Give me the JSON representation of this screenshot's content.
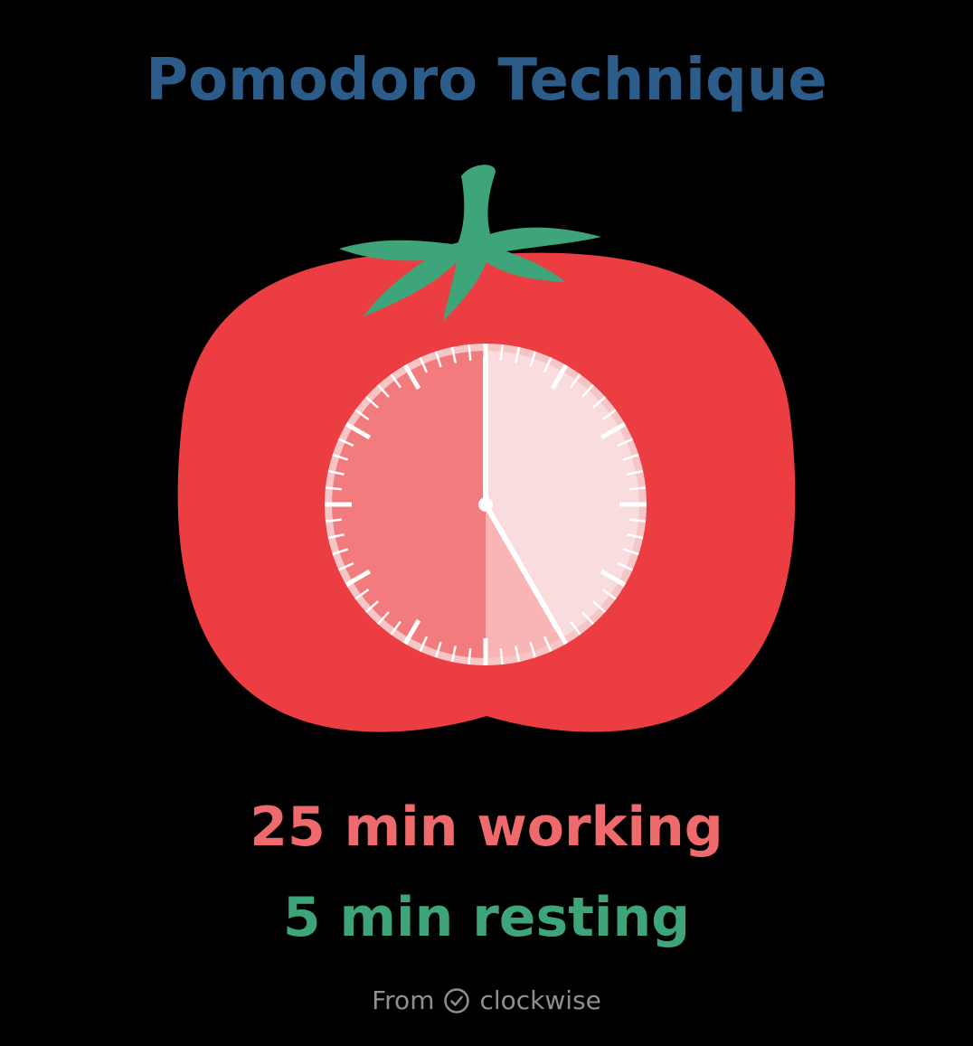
{
  "title": "Pomodoro Technique",
  "work_line": "25 min working",
  "rest_line": "5 min resting",
  "credit": {
    "prefix": "From",
    "brand": "clockwise",
    "icon": "check-circle-icon"
  },
  "clock": {
    "work_minutes": 25,
    "rest_minutes": 5,
    "total_minutes": 60,
    "start_minute": 0
  },
  "colors": {
    "title": "#2b5c8a",
    "working": "#ef6a6c",
    "resting": "#3ea57a",
    "tomato": "#ec3d42",
    "leaf": "#3ea57a",
    "work_sector": "#f27b7d",
    "rest_sector": "#f9b4b6",
    "clock_face": "#f9dcdd",
    "credit": "#8f8f8f"
  }
}
